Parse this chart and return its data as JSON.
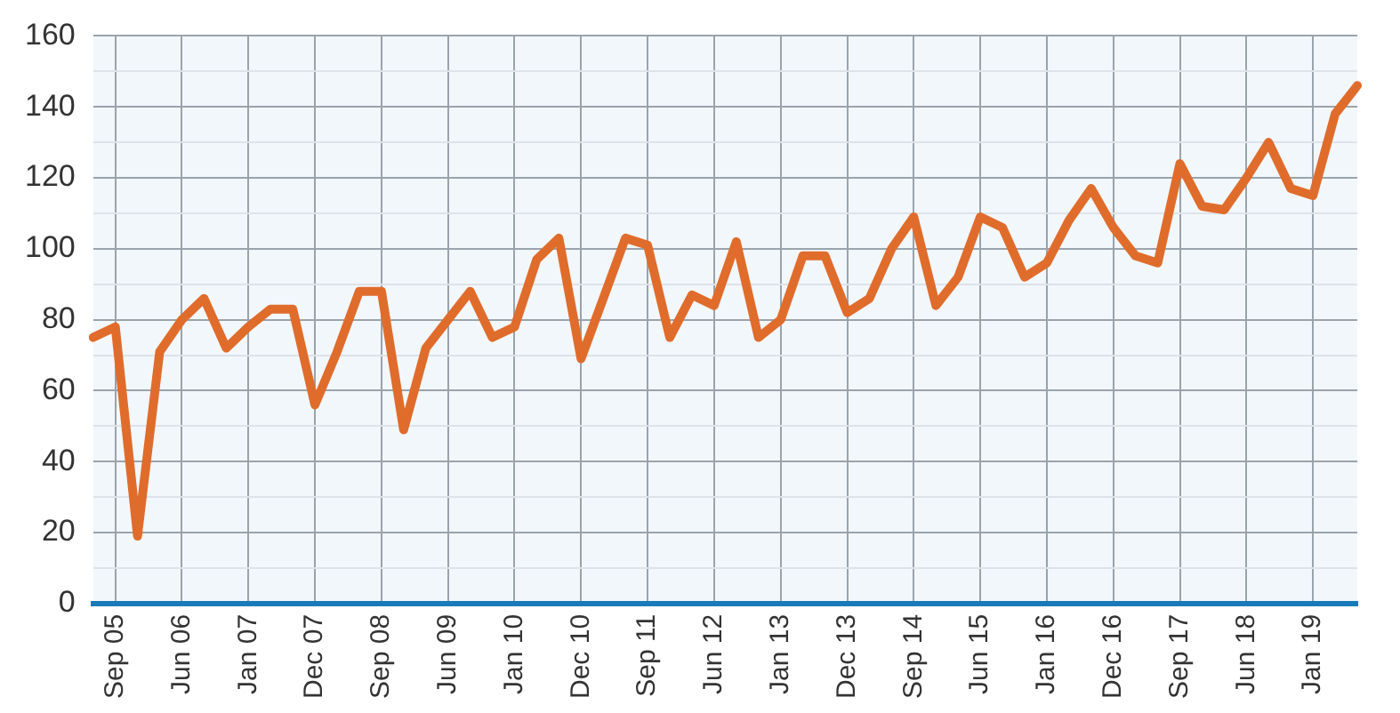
{
  "chart_data": {
    "type": "line",
    "categories": [
      null,
      "Sep 05",
      null,
      null,
      "Jun 06",
      null,
      null,
      "Jan 07",
      null,
      null,
      "Dec 07",
      null,
      null,
      "Sep 08",
      null,
      null,
      "Jun 09",
      null,
      null,
      "Jan 10",
      null,
      null,
      "Dec 10",
      null,
      null,
      "Sep 11",
      null,
      null,
      "Jun 12",
      null,
      null,
      "Jan 13",
      null,
      null,
      "Dec 13",
      null,
      null,
      "Sep 14",
      null,
      null,
      "Jun 15",
      null,
      null,
      "Jan 16",
      null,
      null,
      "Dec 16",
      null,
      null,
      "Sep 17",
      null,
      null,
      "Jun 18",
      null,
      null,
      "Jan 19",
      null,
      null
    ],
    "series": [
      {
        "color": "#e06c2c",
        "values": [
          75,
          78,
          19,
          71,
          80,
          86,
          72,
          78,
          83,
          83,
          56,
          71,
          88,
          88,
          49,
          72,
          80,
          88,
          75,
          78,
          97,
          103,
          69,
          86,
          103,
          101,
          75,
          87,
          84,
          102,
          75,
          80,
          98,
          98,
          82,
          86,
          100,
          109,
          84,
          92,
          109,
          106,
          92,
          96,
          108,
          117,
          106,
          98,
          96,
          124,
          112,
          111,
          120,
          130,
          117,
          115,
          138,
          146
        ]
      }
    ],
    "ylim": [
      0,
      160
    ],
    "yticks": [
      0,
      {
        "value": 10,
        "label": null
      },
      20,
      {
        "value": 30,
        "label": null
      },
      40,
      {
        "value": 50,
        "label": null
      },
      60,
      {
        "value": 70,
        "label": null
      },
      80,
      {
        "value": 90,
        "label": null
      },
      100,
      {
        "value": 110,
        "label": null
      },
      120,
      {
        "value": 130,
        "label": null
      },
      140,
      {
        "value": 150,
        "label": null
      },
      160
    ],
    "grid": true,
    "legend": false,
    "marker": "none",
    "line_style": "solid"
  }
}
